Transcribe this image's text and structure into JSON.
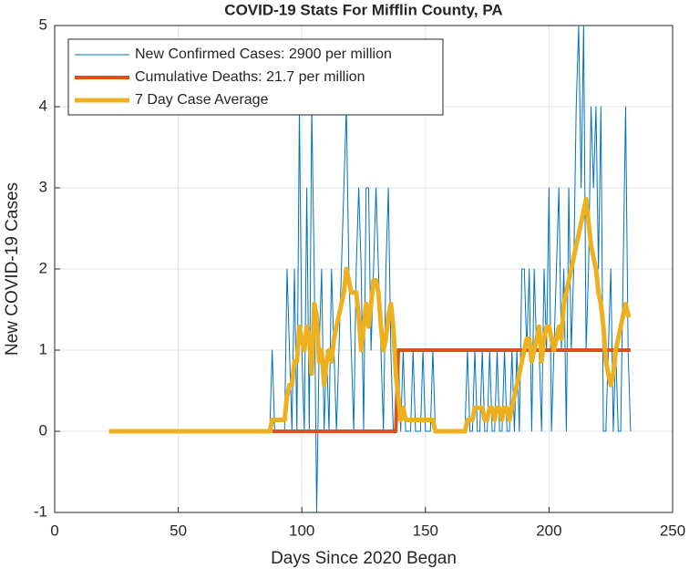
{
  "chart_data": {
    "type": "line",
    "title": "COVID-19 Stats For Mifflin County, PA",
    "xlabel": "Days Since 2020 Began",
    "ylabel": "New COVID-19 Cases",
    "xlim": [
      0,
      250
    ],
    "xticks": [
      0,
      50,
      100,
      150,
      200,
      250
    ],
    "ylim": [
      -1,
      5
    ],
    "yticks": [
      -1,
      0,
      1,
      2,
      3,
      4,
      5
    ],
    "grid": true,
    "legend": "northwest",
    "x": [
      22,
      23,
      24,
      25,
      26,
      27,
      28,
      29,
      30,
      31,
      32,
      33,
      34,
      35,
      36,
      37,
      38,
      39,
      40,
      41,
      42,
      43,
      44,
      45,
      46,
      47,
      48,
      49,
      50,
      51,
      52,
      53,
      54,
      55,
      56,
      57,
      58,
      59,
      60,
      61,
      62,
      63,
      64,
      65,
      66,
      67,
      68,
      69,
      70,
      71,
      72,
      73,
      74,
      75,
      76,
      77,
      78,
      79,
      80,
      81,
      82,
      83,
      84,
      85,
      86,
      87,
      88,
      89,
      90,
      91,
      92,
      93,
      94,
      95,
      96,
      97,
      98,
      99,
      100,
      101,
      102,
      103,
      104,
      105,
      106,
      107,
      108,
      109,
      110,
      111,
      112,
      113,
      114,
      115,
      116,
      117,
      118,
      119,
      120,
      121,
      122,
      123,
      124,
      125,
      126,
      127,
      128,
      129,
      130,
      131,
      132,
      133,
      134,
      135,
      136,
      137,
      138,
      139,
      140,
      141,
      142,
      143,
      144,
      145,
      146,
      147,
      148,
      149,
      150,
      151,
      152,
      153,
      154,
      155,
      156,
      157,
      158,
      159,
      160,
      161,
      162,
      163,
      164,
      165,
      166,
      167,
      168,
      169,
      170,
      171,
      172,
      173,
      174,
      175,
      176,
      177,
      178,
      179,
      180,
      181,
      182,
      183,
      184,
      185,
      186,
      187,
      188,
      189,
      190,
      191,
      192,
      193,
      194,
      195,
      196,
      197,
      198,
      199,
      200,
      201,
      202,
      203,
      204,
      205,
      206,
      207,
      208,
      209,
      210,
      211,
      212,
      213,
      214,
      215,
      216,
      217,
      218,
      219,
      220,
      221,
      222,
      223,
      224,
      225,
      226,
      227,
      228,
      229,
      230,
      231,
      232,
      233
    ],
    "series": [
      {
        "name": "New Confirmed Cases: 2900 per million",
        "color": "#0072bd",
        "width": 1,
        "values": [
          0,
          0,
          0,
          0,
          0,
          0,
          0,
          0,
          0,
          0,
          0,
          0,
          0,
          0,
          0,
          0,
          0,
          0,
          0,
          0,
          0,
          0,
          0,
          0,
          0,
          0,
          0,
          0,
          0,
          0,
          0,
          0,
          0,
          0,
          0,
          0,
          0,
          0,
          0,
          0,
          0,
          0,
          0,
          0,
          0,
          0,
          0,
          0,
          0,
          0,
          0,
          0,
          0,
          0,
          0,
          0,
          0,
          0,
          0,
          0,
          0,
          0,
          0,
          0,
          0,
          0,
          1,
          0,
          0,
          0,
          0,
          0,
          2,
          1,
          0,
          2,
          0,
          4,
          1,
          0,
          3,
          0,
          4,
          2,
          -1,
          1,
          2,
          0,
          1,
          0,
          2,
          1,
          0,
          1,
          2,
          3,
          4,
          2,
          1,
          0,
          2,
          3,
          2,
          0,
          3,
          3,
          1,
          2,
          3,
          2,
          1,
          0,
          2,
          3,
          1,
          0,
          0,
          1,
          0,
          1,
          0,
          0,
          0,
          1,
          0,
          0,
          0,
          1,
          0,
          0,
          0,
          1,
          0,
          0,
          0,
          0,
          0,
          0,
          0,
          0,
          0,
          0,
          0,
          0,
          0,
          1,
          0,
          0,
          1,
          0,
          0,
          1,
          0,
          0,
          1,
          0,
          0,
          1,
          0,
          0,
          1,
          0,
          0,
          1,
          0,
          1,
          0,
          2,
          2,
          1,
          2,
          0,
          2,
          1,
          1,
          0,
          2,
          1,
          3,
          0,
          1,
          2,
          3,
          1,
          2,
          0,
          3,
          1,
          2,
          4,
          5,
          3,
          5,
          1,
          2,
          4,
          3,
          4,
          2,
          4,
          0,
          0,
          1,
          2,
          0,
          1,
          0,
          0,
          2,
          4,
          1,
          0
        ]
      },
      {
        "name": "Cumulative Deaths: 21.7 per million",
        "color": "#d95319",
        "width": 4,
        "values": [
          null,
          null,
          null,
          null,
          null,
          null,
          null,
          null,
          null,
          null,
          null,
          null,
          null,
          null,
          null,
          null,
          null,
          null,
          null,
          null,
          null,
          null,
          null,
          null,
          null,
          null,
          null,
          null,
          null,
          null,
          null,
          null,
          null,
          null,
          null,
          null,
          null,
          null,
          null,
          null,
          null,
          null,
          null,
          null,
          null,
          null,
          null,
          null,
          null,
          null,
          null,
          null,
          null,
          null,
          null,
          null,
          null,
          null,
          null,
          null,
          null,
          null,
          null,
          null,
          null,
          null,
          0,
          0,
          0,
          0,
          0,
          0,
          0,
          0,
          0,
          0,
          0,
          0,
          0,
          0,
          0,
          0,
          0,
          0,
          0,
          0,
          0,
          0,
          0,
          0,
          0,
          0,
          0,
          0,
          0,
          0,
          0,
          0,
          0,
          0,
          0,
          0,
          0,
          0,
          0,
          0,
          0,
          0,
          0,
          0,
          0,
          0,
          0,
          0,
          0,
          0,
          0,
          1,
          1,
          1,
          1,
          1,
          1,
          1,
          1,
          1,
          1,
          1,
          1,
          1,
          1,
          1,
          1,
          1,
          1,
          1,
          1,
          1,
          1,
          1,
          1,
          1,
          1,
          1,
          1,
          1,
          1,
          1,
          1,
          1,
          1,
          1,
          1,
          1,
          1,
          1,
          1,
          1,
          1,
          1,
          1,
          1,
          1,
          1,
          1,
          1,
          1,
          1,
          1,
          1,
          1,
          1,
          1,
          1,
          1,
          1,
          1,
          1,
          1,
          1,
          1,
          1,
          1,
          1,
          1,
          1,
          1,
          1,
          1,
          1,
          1,
          1,
          1,
          1,
          1,
          1,
          1,
          1,
          1,
          1,
          1,
          1,
          1,
          1,
          1,
          1,
          1,
          1,
          1,
          1,
          1,
          1
        ]
      },
      {
        "name": "7 Day Case Average",
        "color": "#edb120",
        "width": 5,
        "values": [
          0,
          0,
          0,
          0,
          0,
          0,
          0,
          0,
          0,
          0,
          0,
          0,
          0,
          0,
          0,
          0,
          0,
          0,
          0,
          0,
          0,
          0,
          0,
          0,
          0,
          0,
          0,
          0,
          0,
          0,
          0,
          0,
          0,
          0,
          0,
          0,
          0,
          0,
          0,
          0,
          0,
          0,
          0,
          0,
          0,
          0,
          0,
          0,
          0,
          0,
          0,
          0,
          0,
          0,
          0,
          0,
          0,
          0,
          0,
          0,
          0,
          0,
          0,
          0,
          0,
          0,
          0.14,
          0.14,
          0.14,
          0.14,
          0.14,
          0.14,
          0.43,
          0.57,
          0.57,
          0.86,
          0.86,
          1.29,
          1.14,
          1.0,
          1.29,
          1.14,
          0.71,
          1.57,
          1.43,
          0.86,
          1.0,
          0.57,
          0.86,
          1.0,
          0.86,
          1.14,
          1.29,
          1.43,
          1.57,
          1.71,
          2.0,
          1.86,
          1.71,
          1.71,
          1.71,
          1.43,
          1.0,
          1.29,
          1.57,
          1.29,
          1.57,
          1.86,
          1.86,
          1.71,
          1.29,
          1.0,
          1.14,
          1.43,
          1.57,
          1.29,
          0.71,
          0.43,
          0.14,
          0.29,
          0.14,
          0.14,
          0.14,
          0.14,
          0.14,
          0.14,
          0.14,
          0.14,
          0.14,
          0.14,
          0.14,
          0.14,
          0,
          0,
          0,
          0,
          0,
          0,
          0,
          0,
          0,
          0,
          0,
          0,
          0,
          0.14,
          0.14,
          0.14,
          0.29,
          0.29,
          0.29,
          0.29,
          0.14,
          0.14,
          0.29,
          0.29,
          0.14,
          0.29,
          0.29,
          0.14,
          0.29,
          0.29,
          0.14,
          0.29,
          0.43,
          0.57,
          0.71,
          0.86,
          1.0,
          1.14,
          1.14,
          0.86,
          1.0,
          1.14,
          1.29,
          0.86,
          1.14,
          1.29,
          1.29,
          1.14,
          1.0,
          1.14,
          1.29,
          1.14,
          1.57,
          1.71,
          1.86,
          2.0,
          2.14,
          2.29,
          2.43,
          2.57,
          2.71,
          2.86,
          2.57,
          2.29,
          2.14,
          2.0,
          1.71,
          1.57,
          1.29,
          0.86,
          0.71,
          0.57,
          0.71,
          1.0,
          1.14,
          1.29,
          1.43,
          1.57,
          1.43,
          1.43
        ]
      }
    ]
  }
}
